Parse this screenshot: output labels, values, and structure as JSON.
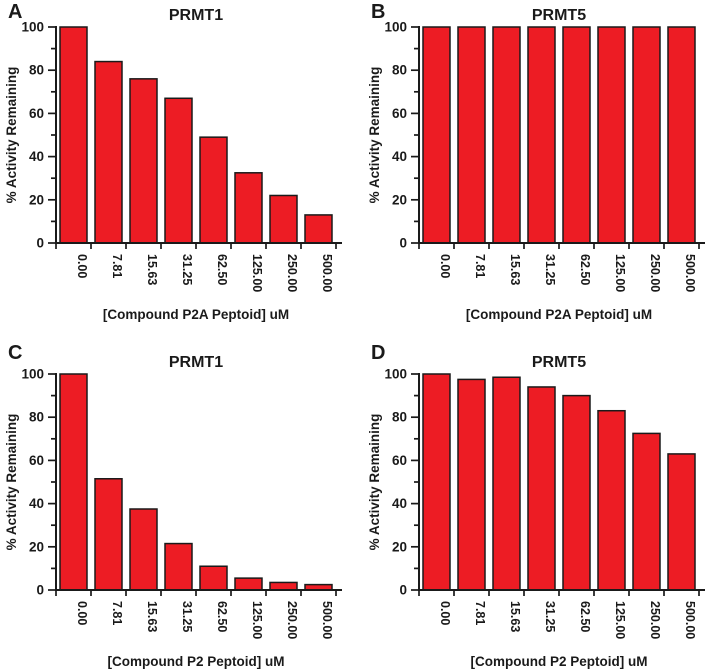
{
  "figure": {
    "background": "#ffffff",
    "bar_fill": "#ED1C24",
    "bar_stroke": "#1a1a1a",
    "axis_color": "#1a1a1a",
    "text_color": "#1a1a1a"
  },
  "chart_data": [
    {
      "type": "bar",
      "panel": "A",
      "title": "PRMT1",
      "xlabel": "[Compound P2A Peptoid] uM",
      "ylabel": "% Activity Remaining",
      "ylim": [
        0,
        100
      ],
      "yticks": [
        0,
        20,
        40,
        60,
        80,
        100
      ],
      "minor_yticks": [
        10,
        30,
        50,
        70,
        90
      ],
      "grid": false,
      "legend": "none",
      "categories": [
        "0.00",
        "7.81",
        "15.63",
        "31.25",
        "62.50",
        "125.00",
        "250.00",
        "500.00"
      ],
      "values": [
        100,
        84,
        76,
        67,
        49,
        32.5,
        22,
        13
      ]
    },
    {
      "type": "bar",
      "panel": "B",
      "title": "PRMT5",
      "xlabel": "[Compound P2A Peptoid] uM",
      "ylabel": "% Activity Remaining",
      "ylim": [
        0,
        100
      ],
      "yticks": [
        0,
        20,
        40,
        60,
        80,
        100
      ],
      "minor_yticks": [
        10,
        30,
        50,
        70,
        90
      ],
      "grid": false,
      "legend": "none",
      "categories": [
        "0.00",
        "7.81",
        "15.63",
        "31.25",
        "62.50",
        "125.00",
        "250.00",
        "500.00"
      ],
      "values": [
        100,
        100,
        100,
        100,
        100,
        100,
        100,
        100
      ]
    },
    {
      "type": "bar",
      "panel": "C",
      "title": "PRMT1",
      "xlabel": "[Compound P2 Peptoid] uM",
      "ylabel": "% Activity Remaining",
      "ylim": [
        0,
        100
      ],
      "yticks": [
        0,
        20,
        40,
        60,
        80,
        100
      ],
      "minor_yticks": [
        10,
        30,
        50,
        70,
        90
      ],
      "grid": false,
      "legend": "none",
      "categories": [
        "0.00",
        "7.81",
        "15.63",
        "31.25",
        "62.50",
        "125.00",
        "250.00",
        "500.00"
      ],
      "values": [
        100,
        51.5,
        37.5,
        21.5,
        11,
        5.5,
        3.5,
        2.5
      ]
    },
    {
      "type": "bar",
      "panel": "D",
      "title": "PRMT5",
      "xlabel": "[Compound P2 Peptoid] uM",
      "ylabel": "% Activity Remaining",
      "ylim": [
        0,
        100
      ],
      "yticks": [
        0,
        20,
        40,
        60,
        80,
        100
      ],
      "minor_yticks": [
        10,
        30,
        50,
        70,
        90
      ],
      "grid": false,
      "legend": "none",
      "categories": [
        "0.00",
        "7.81",
        "15.63",
        "31.25",
        "62.50",
        "125.00",
        "250.00",
        "500.00"
      ],
      "values": [
        100,
        97.5,
        98.5,
        94,
        90,
        83,
        72.5,
        63
      ]
    }
  ]
}
